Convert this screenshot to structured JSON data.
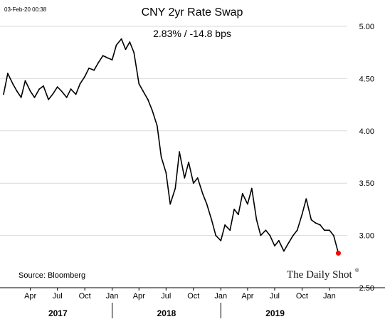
{
  "timestamp": "03-Feb-20 00:38",
  "source_note": "Source: Bloomberg",
  "brand": "The Daily Shot",
  "brand_mark": "®",
  "chart_data": {
    "type": "line",
    "title": "CNY 2yr Rate Swap",
    "subtitle": "2.83%  /  -14.8 bps",
    "ylim": [
      2.5,
      5.0
    ],
    "y_ticks": [
      "5.00",
      "4.50",
      "4.00",
      "3.50",
      "3.00",
      "2.50"
    ],
    "y_axis_side": "right",
    "grid": true,
    "x_tick_labels": [
      "Apr",
      "Jul",
      "Oct",
      "Jan",
      "Apr",
      "Jul",
      "Oct",
      "Jan",
      "Apr",
      "Jul",
      "Oct",
      "Jan"
    ],
    "x_tick_dates": [
      "2017-04",
      "2017-07",
      "2017-10",
      "2018-01",
      "2018-04",
      "2018-07",
      "2018-10",
      "2019-01",
      "2019-04",
      "2019-07",
      "2019-10",
      "2020-01"
    ],
    "x_range": [
      "2017-01",
      "2020-03"
    ],
    "year_labels": [
      "2017",
      "2018",
      "2019"
    ],
    "line_color": "#000000",
    "last_point_color": "#ff0000",
    "series": [
      {
        "x": [
          "2017-01-01",
          "2017-01-15",
          "2017-02-01",
          "2017-02-15",
          "2017-03-01",
          "2017-03-15",
          "2017-04-01",
          "2017-04-15",
          "2017-05-01",
          "2017-05-15",
          "2017-06-01",
          "2017-06-15",
          "2017-07-01",
          "2017-07-15",
          "2017-08-01",
          "2017-08-15",
          "2017-09-01",
          "2017-09-15",
          "2017-10-01",
          "2017-10-15",
          "2017-11-01",
          "2017-11-15",
          "2017-12-01",
          "2017-12-15",
          "2018-01-01",
          "2018-01-15",
          "2018-02-01",
          "2018-02-15",
          "2018-03-01",
          "2018-03-15",
          "2018-04-01",
          "2018-04-15",
          "2018-05-01",
          "2018-05-15",
          "2018-06-01",
          "2018-06-15",
          "2018-07-01",
          "2018-07-15",
          "2018-08-01",
          "2018-08-15",
          "2018-09-01",
          "2018-09-15",
          "2018-10-01",
          "2018-10-15",
          "2018-11-01",
          "2018-11-15",
          "2018-12-01",
          "2018-12-15",
          "2019-01-01",
          "2019-01-15",
          "2019-02-01",
          "2019-02-15",
          "2019-03-01",
          "2019-03-15",
          "2019-04-01",
          "2019-04-15",
          "2019-05-01",
          "2019-05-15",
          "2019-06-01",
          "2019-06-15",
          "2019-07-01",
          "2019-07-15",
          "2019-08-01",
          "2019-08-15",
          "2019-09-01",
          "2019-09-15",
          "2019-10-01",
          "2019-10-15",
          "2019-11-01",
          "2019-11-15",
          "2019-12-01",
          "2019-12-15",
          "2020-01-01",
          "2020-01-15",
          "2020-01-31"
        ],
        "values": [
          4.35,
          4.55,
          4.45,
          4.38,
          4.32,
          4.48,
          4.38,
          4.32,
          4.4,
          4.43,
          4.3,
          4.35,
          4.42,
          4.38,
          4.32,
          4.4,
          4.35,
          4.45,
          4.52,
          4.6,
          4.58,
          4.65,
          4.72,
          4.7,
          4.68,
          4.82,
          4.88,
          4.78,
          4.85,
          4.75,
          4.45,
          4.38,
          4.3,
          4.2,
          4.05,
          3.75,
          3.6,
          3.3,
          3.45,
          3.8,
          3.55,
          3.7,
          3.5,
          3.55,
          3.4,
          3.3,
          3.15,
          3.0,
          2.95,
          3.1,
          3.05,
          3.25,
          3.2,
          3.4,
          3.3,
          3.45,
          3.15,
          3.0,
          3.05,
          3.0,
          2.9,
          2.95,
          2.85,
          2.92,
          3.0,
          3.05,
          3.2,
          3.35,
          3.15,
          3.12,
          3.1,
          3.05,
          3.05,
          3.0,
          2.83
        ]
      }
    ]
  }
}
